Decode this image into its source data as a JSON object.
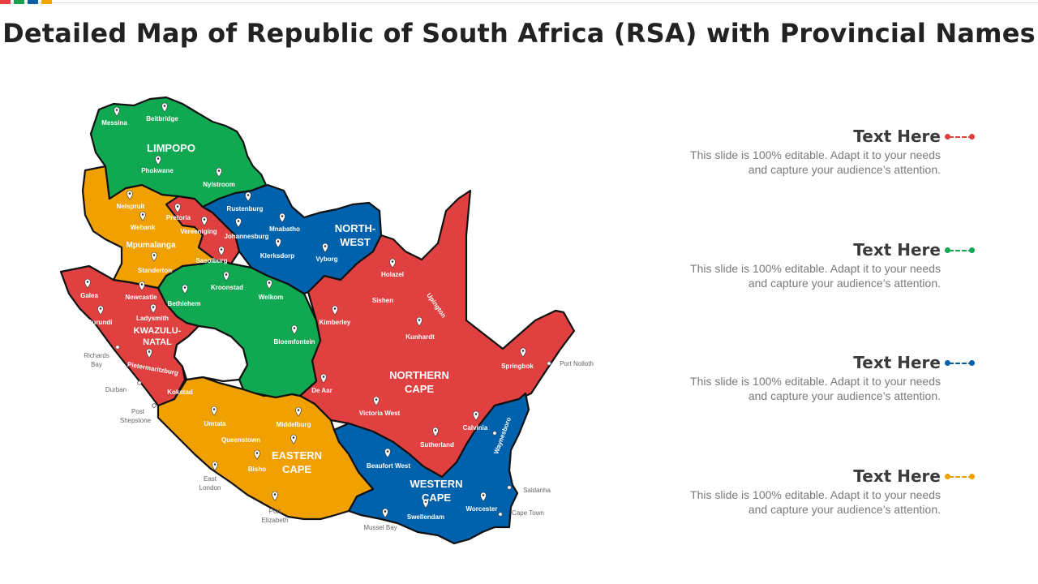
{
  "header": {
    "title": "Detailed Map of Republic of South Africa (RSA) with Provincial Names",
    "accent_colors": [
      "#e84040",
      "#1aa14d",
      "#0b5fa5",
      "#f0a500"
    ]
  },
  "colors": {
    "red": "#e04040",
    "green": "#10a850",
    "blue": "#0061ad",
    "orange": "#f0a000"
  },
  "provinces": {
    "limpopo": "LIMPOPO",
    "mpumalanga": "Mpumalanga",
    "northwest_1": "NORTH-",
    "northwest_2": "WEST",
    "kzn_1": "KWAZULU-",
    "kzn_2": "NATAL",
    "nc_1": "NORTHERN",
    "nc_2": "CAPE",
    "ec_1": "EASTERN",
    "ec_2": "CAPE",
    "wc_1": "WESTERN",
    "wc_2": "CAPE"
  },
  "cities": {
    "messina": "Messina",
    "beitbridge": "Beitbridge",
    "phokwane": "Phokwane",
    "nylstroom": "Nylstroom",
    "nelspruit": "Nelspruit",
    "webank": "Webank",
    "pretoria": "Pretoria",
    "vereeniging": "Vereeniging",
    "rustenburg": "Rustenburg",
    "mnabatho": "Mnabatho",
    "johannesburg": "Johannesburg",
    "klerksdorp": "Klerksdorp",
    "vyborg": "Vyborg",
    "standerton": "Standerton",
    "sasolburg": "Sasolburg",
    "kroonstad": "Kroonstad",
    "welkom": "Welkom",
    "galea": "Galea",
    "newcastle": "Newcastle",
    "bethlehem": "Bethlehem",
    "ladysmith": "Ladysmith",
    "burundi": "Burundi",
    "bloemfontein": "Bloemfontein",
    "holazel": "Holazel",
    "sishen": "Sishen",
    "upington": "Upington",
    "kimberley": "Kimberley",
    "kunhardt": "Kunhardt",
    "springbok": "Springbok",
    "port_nolloth": "Port Nolloth",
    "richards_1": "Richards",
    "richards_2": "Bay",
    "pietermaritzburg": "Pietermaritzburg",
    "durban": "Durban",
    "kokstad": "Kokstad",
    "de_aar": "De Aar",
    "post_1": "Post",
    "post_2": "Shepstone",
    "umtata": "Umtata",
    "middelburg": "Middelburg",
    "victoria_west": "Victoria  West",
    "calvinia": "Calvinia",
    "queenstown": "Queenstown",
    "waynesboro": "Waynesboro",
    "sutherland": "Sutherland",
    "bisho": "Bisho",
    "beaufort_west": "Beaufort West",
    "east_1": "East",
    "east_2": "London",
    "saldanha": "Saldanha",
    "worcester": "Worcester",
    "cape_town": "Cape Town",
    "swellendam": "Swellendam",
    "port_e_1": "Port",
    "port_e_2": "Elizabeth",
    "mussel_bay": "Mussel Bay"
  },
  "legend": [
    {
      "heading": "Text Here",
      "body_1": "This slide is 100% editable. Adapt it to your needs",
      "body_2": "and capture your audience’s attention.",
      "color": "#e04040"
    },
    {
      "heading": "Text Here",
      "body_1": "This slide is 100% editable. Adapt it to your needs",
      "body_2": "and capture your audience’s attention.",
      "color": "#10a850"
    },
    {
      "heading": "Text Here",
      "body_1": "This slide is 100% editable. Adapt it to your needs",
      "body_2": "and capture your audience’s attention.",
      "color": "#0061ad"
    },
    {
      "heading": "Text Here",
      "body_1": "This slide is 100% editable. Adapt it to your needs",
      "body_2": "and capture your audience’s attention.",
      "color": "#f0a000"
    }
  ]
}
